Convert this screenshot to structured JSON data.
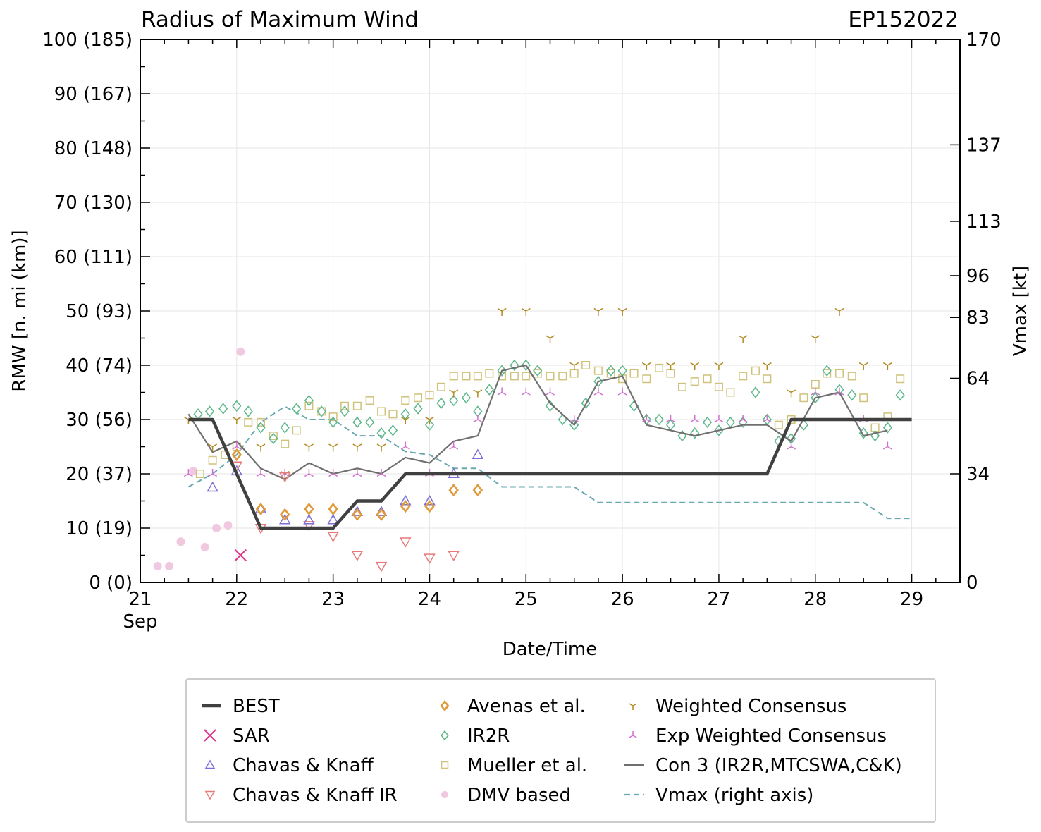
{
  "chart_data": {
    "type": "scatter",
    "title": "Radius of Maximum Wind",
    "storm_id": "EP152022",
    "xlabel": "Date/Time",
    "ylabel": "RMW [n. mi (km)]",
    "ylabel_right": "Vmax [kt]",
    "xlim": [
      21.0,
      29.5
    ],
    "ylim": [
      0,
      100
    ],
    "x_ticks": [
      {
        "value": 21,
        "label": "21",
        "sublabel": "Sep"
      },
      {
        "value": 22,
        "label": "22",
        "sublabel": ""
      },
      {
        "value": 23,
        "label": "23",
        "sublabel": ""
      },
      {
        "value": 24,
        "label": "24",
        "sublabel": ""
      },
      {
        "value": 25,
        "label": "25",
        "sublabel": ""
      },
      {
        "value": 26,
        "label": "26",
        "sublabel": ""
      },
      {
        "value": 27,
        "label": "27",
        "sublabel": ""
      },
      {
        "value": 28,
        "label": "28",
        "sublabel": ""
      },
      {
        "value": 29,
        "label": "29",
        "sublabel": ""
      }
    ],
    "y_ticks": [
      {
        "value": 0,
        "label": "0 (0)"
      },
      {
        "value": 10,
        "label": "10 (19)"
      },
      {
        "value": 20,
        "label": "20 (37)"
      },
      {
        "value": 30,
        "label": "30 (56)"
      },
      {
        "value": 40,
        "label": "40 (74)"
      },
      {
        "value": 50,
        "label": "50 (93)"
      },
      {
        "value": 60,
        "label": "60 (111)"
      },
      {
        "value": 70,
        "label": "70 (130)"
      },
      {
        "value": 80,
        "label": "80 (148)"
      },
      {
        "value": 90,
        "label": "90 (167)"
      },
      {
        "value": 100,
        "label": "100 (185)"
      }
    ],
    "right_ticks": [
      {
        "value": 0,
        "label": "0"
      },
      {
        "value": 20,
        "label": "34"
      },
      {
        "value": 37.6,
        "label": "64"
      },
      {
        "value": 48.8,
        "label": "83"
      },
      {
        "value": 56.5,
        "label": "96"
      },
      {
        "value": 66.5,
        "label": "113"
      },
      {
        "value": 80.6,
        "label": "137"
      },
      {
        "value": 100,
        "label": "170"
      }
    ],
    "series": [
      {
        "name": "BEST",
        "kind": "line",
        "color": "#404040",
        "x": [
          21.5,
          21.75,
          22.0,
          22.25,
          22.5,
          22.75,
          23.0,
          23.25,
          23.5,
          23.75,
          24.0,
          24.25,
          24.5,
          24.75,
          25.0,
          25.25,
          25.5,
          25.75,
          26.0,
          26.25,
          26.5,
          26.75,
          27.0,
          27.25,
          27.5,
          27.75,
          28.0,
          28.25,
          28.5,
          28.75,
          29.0
        ],
        "y": [
          30,
          30,
          20,
          10,
          10,
          10,
          10,
          15,
          15,
          20,
          20,
          20,
          20,
          20,
          20,
          20,
          20,
          20,
          20,
          20,
          20,
          20,
          20,
          20,
          20,
          30,
          30,
          30,
          30,
          30,
          30
        ]
      },
      {
        "name": "SAR",
        "kind": "marker",
        "marker": "x",
        "color": "#e0358a",
        "x": [
          22.04
        ],
        "y": [
          5
        ]
      },
      {
        "name": "Chavas & Knaff",
        "kind": "marker",
        "marker": "tri-up",
        "color": "#7b6fd8",
        "x": [
          21.75,
          22.0,
          22.25,
          22.5,
          22.75,
          23.0,
          23.25,
          23.5,
          23.75,
          24.0,
          24.25,
          24.5
        ],
        "y": [
          17.5,
          20.5,
          13.5,
          11.5,
          11.5,
          11.5,
          13,
          13,
          15,
          15,
          20,
          23.5
        ]
      },
      {
        "name": "Chavas & Knaff IR",
        "kind": "marker",
        "marker": "tri-down",
        "color": "#e87a7a",
        "x": [
          22.0,
          22.25,
          22.5,
          22.75,
          23.0,
          23.25,
          23.5,
          23.75,
          24.0,
          24.25
        ],
        "y": [
          21.5,
          10,
          19.5,
          10.5,
          8.5,
          5,
          3,
          7.5,
          4.5,
          5
        ]
      },
      {
        "name": "Avenas et al.",
        "kind": "marker",
        "marker": "diamond-bold",
        "color": "#e09a3a",
        "x": [
          22.0,
          22.25,
          22.5,
          22.75,
          23.0,
          23.25,
          23.5,
          23.75,
          24.0,
          24.25,
          24.5
        ],
        "y": [
          23.5,
          13.5,
          12.5,
          13.5,
          13.5,
          12.5,
          12.5,
          14,
          14,
          17,
          17
        ]
      },
      {
        "name": "IR2R",
        "kind": "marker",
        "marker": "diamond",
        "color": "#5cb88a",
        "x": [
          21.6,
          21.72,
          21.86,
          22.0,
          22.12,
          22.25,
          22.38,
          22.5,
          22.62,
          22.75,
          22.88,
          23.0,
          23.12,
          23.25,
          23.38,
          23.5,
          23.62,
          23.75,
          23.88,
          24.0,
          24.12,
          24.25,
          24.38,
          24.5,
          24.62,
          24.75,
          24.88,
          25.0,
          25.12,
          25.25,
          25.38,
          25.5,
          25.62,
          25.75,
          25.88,
          26.0,
          26.12,
          26.25,
          26.38,
          26.5,
          26.62,
          26.75,
          26.88,
          27.0,
          27.12,
          27.25,
          27.38,
          27.5,
          27.62,
          27.75,
          27.88,
          28.0,
          28.12,
          28.25,
          28.38,
          28.5,
          28.62,
          28.75,
          28.88
        ],
        "y": [
          31,
          31.5,
          32,
          32.5,
          31.5,
          28.5,
          26.5,
          28.5,
          32,
          33.5,
          31.5,
          29.5,
          31.5,
          29.5,
          29.5,
          27.5,
          28,
          31,
          32,
          29,
          33,
          33.5,
          34,
          31.5,
          35.5,
          39,
          40,
          40,
          39,
          32.5,
          30,
          29,
          33,
          37,
          39,
          39,
          32.5,
          30,
          30,
          29,
          27,
          27.5,
          29.5,
          28,
          29.5,
          29.5,
          35,
          30,
          26,
          26.5,
          29,
          34,
          39,
          35.5,
          34.5,
          27.5,
          27,
          28.5,
          34.5
        ]
      },
      {
        "name": "Mueller et al.",
        "kind": "marker",
        "marker": "square",
        "color": "#cfc27a",
        "x": [
          21.62,
          21.75,
          21.88,
          22.0,
          22.12,
          22.25,
          22.38,
          22.5,
          22.62,
          22.75,
          22.88,
          23.0,
          23.12,
          23.25,
          23.38,
          23.5,
          23.62,
          23.75,
          23.88,
          24.0,
          24.12,
          24.25,
          24.38,
          24.5,
          24.62,
          24.75,
          24.88,
          25.0,
          25.12,
          25.25,
          25.38,
          25.5,
          25.62,
          25.75,
          25.88,
          26.0,
          26.12,
          26.25,
          26.38,
          26.5,
          26.62,
          26.75,
          26.88,
          27.0,
          27.12,
          27.25,
          27.38,
          27.5,
          27.62,
          27.75,
          27.88,
          28.0,
          28.12,
          28.25,
          28.38,
          28.5,
          28.62,
          28.75,
          28.88
        ],
        "y": [
          20,
          22.5,
          23.5,
          25,
          29.5,
          29.5,
          27,
          25.5,
          28,
          32.5,
          31.5,
          30.5,
          32.5,
          32.5,
          33.5,
          31.5,
          31,
          33.5,
          34,
          34.5,
          36,
          38,
          38,
          38,
          38.5,
          38,
          38,
          38,
          38.5,
          38,
          38,
          38.5,
          40,
          39,
          38.5,
          37.5,
          38.5,
          37.5,
          39.5,
          38.5,
          36,
          37,
          37.5,
          36,
          35,
          38,
          39,
          37.5,
          29,
          30,
          34,
          36.5,
          38.5,
          38.5,
          38,
          34,
          28.5,
          30.5,
          37.5
        ]
      },
      {
        "name": "DMV based",
        "kind": "marker",
        "marker": "circle",
        "color": "#f0c8e0",
        "x": [
          21.18,
          21.3,
          21.42,
          21.55,
          21.67,
          21.79,
          21.91,
          22.04
        ],
        "y": [
          3,
          3,
          7.5,
          20.5,
          6.5,
          10,
          10.5,
          42.5
        ]
      },
      {
        "name": "Weighted Consensus",
        "kind": "marker",
        "marker": "y-down",
        "color": "#b08a20",
        "x": [
          21.5,
          21.75,
          22.0,
          22.25,
          22.5,
          22.75,
          23.0,
          23.25,
          23.5,
          23.75,
          24.0,
          24.25,
          24.5,
          24.75,
          25.0,
          25.25,
          25.5,
          25.75,
          26.0,
          26.25,
          26.5,
          26.75,
          27.0,
          27.25,
          27.5,
          27.75,
          28.0,
          28.25,
          28.5,
          28.75
        ],
        "y": [
          30,
          25,
          30,
          25,
          20,
          25,
          25,
          25,
          25,
          30,
          30,
          35,
          35,
          50,
          50,
          45,
          40,
          50,
          50,
          40,
          40,
          40,
          40,
          45,
          40,
          35,
          45,
          50,
          40,
          40
        ]
      },
      {
        "name": "Exp Weighted Consensus",
        "kind": "marker",
        "marker": "y-up",
        "color": "#d070d0",
        "x": [
          21.5,
          21.75,
          22.0,
          22.25,
          22.5,
          22.75,
          23.0,
          23.25,
          23.5,
          23.75,
          24.0,
          24.25,
          24.5,
          24.75,
          25.0,
          25.25,
          25.5,
          25.75,
          26.0,
          26.25,
          26.5,
          26.75,
          27.0,
          27.25,
          27.5,
          27.75,
          28.0,
          28.25,
          28.5,
          28.75
        ],
        "y": [
          20,
          20,
          25,
          20,
          20,
          20,
          20,
          20,
          20,
          25,
          20,
          25,
          30,
          35,
          35,
          35,
          30,
          35,
          35,
          30,
          30,
          30,
          30,
          30,
          30,
          25,
          35,
          35,
          30,
          25
        ]
      },
      {
        "name": "Con 3 (IR2R,MTCSWA,C&K)",
        "kind": "line",
        "color": "#707070",
        "x": [
          21.5,
          21.75,
          22.0,
          22.25,
          22.5,
          22.75,
          23.0,
          23.25,
          23.5,
          23.75,
          24.0,
          24.25,
          24.5,
          24.75,
          25.0,
          25.25,
          25.5,
          25.75,
          26.0,
          26.25,
          26.5,
          26.75,
          27.0,
          27.25,
          27.5,
          27.75,
          28.0,
          28.25,
          28.5,
          28.75
        ],
        "y": [
          31,
          24,
          26,
          21,
          19,
          22,
          20,
          21,
          20,
          23,
          22,
          26,
          27,
          39,
          40,
          33,
          29,
          37,
          38,
          29,
          28,
          27,
          28,
          29,
          29,
          26,
          34,
          35,
          27,
          28
        ]
      },
      {
        "name": "Vmax (right axis)",
        "kind": "dashed",
        "color": "#6aa8b0",
        "x": [
          21.5,
          21.75,
          22.0,
          22.25,
          22.5,
          22.75,
          23.0,
          23.25,
          23.5,
          23.75,
          24.0,
          24.25,
          24.5,
          24.75,
          25.0,
          25.25,
          25.5,
          25.75,
          26.0,
          26.25,
          26.5,
          26.75,
          27.0,
          27.25,
          27.5,
          27.75,
          28.0,
          28.25,
          28.5,
          28.75,
          29.0
        ],
        "y": [
          17.6,
          20,
          23.5,
          29.5,
          32.4,
          30,
          30,
          27,
          27,
          24.1,
          23.5,
          21,
          21,
          17.6,
          17.6,
          17.6,
          17.6,
          14.7,
          14.7,
          14.7,
          14.7,
          14.7,
          14.7,
          14.7,
          14.7,
          14.7,
          14.7,
          14.7,
          14.7,
          11.8,
          11.8
        ]
      }
    ],
    "legend": {
      "position": "bottom",
      "columns": [
        [
          "BEST",
          "SAR",
          "Chavas & Knaff",
          "Chavas & Knaff IR"
        ],
        [
          "Avenas et al.",
          "IR2R",
          "Mueller et al.",
          "DMV based"
        ],
        [
          "Weighted Consensus",
          "Exp Weighted Consensus",
          "Con 3 (IR2R,MTCSWA,C&K)",
          "Vmax (right axis)"
        ]
      ]
    }
  }
}
